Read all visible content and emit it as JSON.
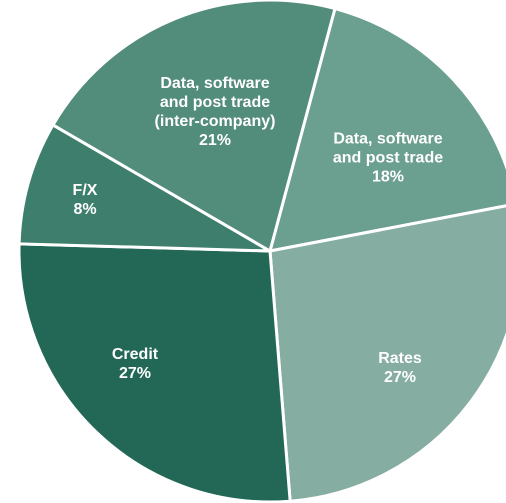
{
  "chart_data": {
    "type": "pie",
    "categories": [
      "Data, software and post trade",
      "Rates",
      "Credit",
      "F/X",
      "Data, software and post trade (inter-company)"
    ],
    "values": [
      18,
      27,
      27,
      8,
      21
    ],
    "value_labels": [
      "18%",
      "27%",
      "27%",
      "8%",
      "21%"
    ],
    "colors": [
      "#6b9f8f",
      "#85ada1",
      "#236857",
      "#3e7e6c",
      "#528c7b"
    ]
  }
}
